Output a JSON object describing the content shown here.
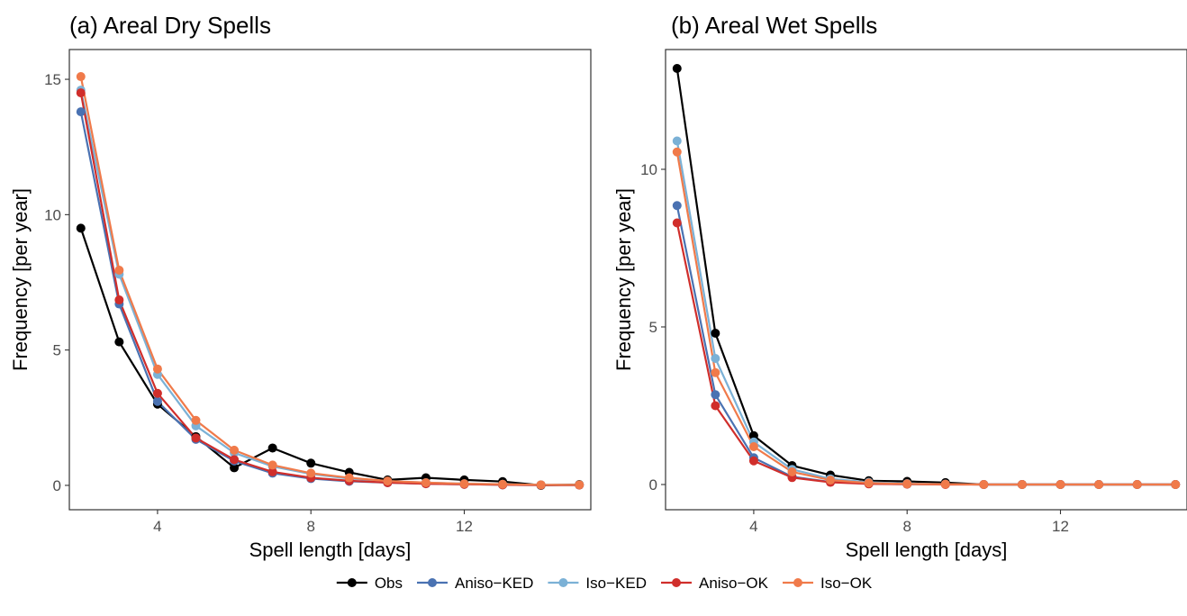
{
  "chart_data": [
    {
      "type": "line",
      "title": "(a) Areal Dry Spells",
      "xlabel": "Spell length [days]",
      "ylabel": "Frequency [per year]",
      "xlim": [
        1.7,
        15.3
      ],
      "ylim": [
        -0.9,
        16.1
      ],
      "xticks": [
        4,
        8,
        12
      ],
      "yticks": [
        0,
        5,
        10,
        15
      ],
      "grid": false,
      "x": [
        2,
        3,
        4,
        5,
        6,
        7,
        8,
        9,
        10,
        11,
        12,
        13,
        14,
        15
      ],
      "series": [
        {
          "name": "Obs",
          "color": "#000000",
          "values": [
            9.5,
            5.3,
            3.0,
            1.8,
            0.65,
            1.38,
            0.82,
            0.48,
            0.2,
            0.28,
            0.2,
            0.14,
            0.0,
            0.03
          ]
        },
        {
          "name": "Aniso−KED",
          "color": "#4a72b2",
          "values": [
            13.8,
            6.7,
            3.1,
            1.7,
            0.9,
            0.45,
            0.25,
            0.15,
            0.1,
            0.06,
            0.04,
            0.02,
            0.01,
            0.01
          ]
        },
        {
          "name": "Iso−KED",
          "color": "#7bb1d6",
          "values": [
            14.6,
            7.8,
            4.1,
            2.2,
            1.2,
            0.7,
            0.42,
            0.25,
            0.15,
            0.1,
            0.06,
            0.04,
            0.02,
            0.02
          ]
        },
        {
          "name": "Aniso−OK",
          "color": "#d02e2b",
          "values": [
            14.5,
            6.85,
            3.4,
            1.75,
            0.95,
            0.5,
            0.28,
            0.17,
            0.1,
            0.06,
            0.04,
            0.02,
            0.01,
            0.01
          ]
        },
        {
          "name": "Iso−OK",
          "color": "#f07a4a",
          "values": [
            15.1,
            7.95,
            4.3,
            2.4,
            1.3,
            0.75,
            0.45,
            0.28,
            0.16,
            0.1,
            0.06,
            0.04,
            0.02,
            0.02
          ]
        }
      ]
    },
    {
      "type": "line",
      "title": "(b) Areal Wet Spells",
      "xlabel": "Spell length [days]",
      "ylabel": "Frequency [per year]",
      "xlim": [
        1.7,
        15.3
      ],
      "ylim": [
        -0.8,
        13.8
      ],
      "xticks": [
        4,
        8,
        12
      ],
      "yticks": [
        0,
        5,
        10
      ],
      "grid": false,
      "x": [
        2,
        3,
        4,
        5,
        6,
        7,
        8,
        9,
        10,
        11,
        12,
        13,
        14,
        15
      ],
      "series": [
        {
          "name": "Obs",
          "color": "#000000",
          "values": [
            13.2,
            4.8,
            1.55,
            0.6,
            0.3,
            0.12,
            0.1,
            0.06,
            0.0,
            0.0,
            0.0,
            0.0,
            0.0,
            0.0
          ]
        },
        {
          "name": "Aniso−KED",
          "color": "#4a72b2",
          "values": [
            8.85,
            2.85,
            0.85,
            0.25,
            0.08,
            0.03,
            0.01,
            0.01,
            0.0,
            0.0,
            0.0,
            0.0,
            0.0,
            0.0
          ]
        },
        {
          "name": "Iso−KED",
          "color": "#7bb1d6",
          "values": [
            10.9,
            4.0,
            1.35,
            0.48,
            0.18,
            0.07,
            0.03,
            0.01,
            0.0,
            0.0,
            0.0,
            0.0,
            0.0,
            0.0
          ]
        },
        {
          "name": "Aniso−OK",
          "color": "#d02e2b",
          "values": [
            8.3,
            2.5,
            0.75,
            0.22,
            0.07,
            0.02,
            0.01,
            0.0,
            0.0,
            0.0,
            0.0,
            0.0,
            0.0,
            0.0
          ]
        },
        {
          "name": "Iso−OK",
          "color": "#f07a4a",
          "values": [
            10.55,
            3.55,
            1.2,
            0.4,
            0.14,
            0.05,
            0.02,
            0.01,
            0.0,
            0.0,
            0.0,
            0.0,
            0.0,
            0.0
          ]
        }
      ]
    }
  ],
  "legend": {
    "placement": "bottom",
    "items": [
      {
        "label": "Obs",
        "color": "#000000"
      },
      {
        "label": "Aniso−KED",
        "color": "#4a72b2"
      },
      {
        "label": "Iso−KED",
        "color": "#7bb1d6"
      },
      {
        "label": "Aniso−OK",
        "color": "#d02e2b"
      },
      {
        "label": "Iso−OK",
        "color": "#f07a4a"
      }
    ]
  }
}
